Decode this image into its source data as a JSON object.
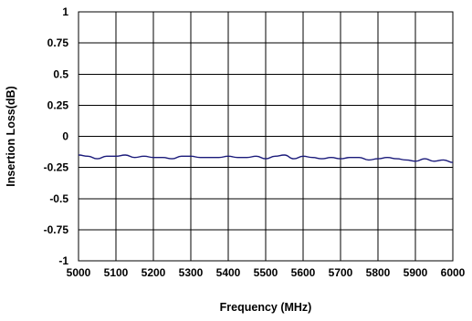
{
  "chart_data": {
    "type": "line",
    "xlabel": "Frequency (MHz)",
    "ylabel": "Insertion Loss(dB)",
    "xlim": [
      5000,
      6000
    ],
    "ylim": [
      -1,
      1
    ],
    "x_ticks": [
      5000,
      5100,
      5200,
      5300,
      5400,
      5500,
      5600,
      5700,
      5800,
      5900,
      6000
    ],
    "y_ticks": [
      1,
      0.75,
      0.5,
      0.25,
      0,
      -0.25,
      -0.5,
      -0.75,
      -1
    ],
    "x_tick_labels": [
      "5000",
      "5100",
      "5200",
      "5300",
      "5400",
      "5500",
      "5600",
      "5700",
      "5800",
      "5900",
      "6000"
    ],
    "y_tick_labels": [
      "1",
      "0.75",
      "0.5",
      "0.25",
      "0",
      "-0.25",
      "-0.5",
      "-0.75",
      "-1"
    ],
    "grid": true,
    "series": [
      {
        "color": "#1a1a7a",
        "x": [
          5000,
          5025,
          5050,
          5075,
          5100,
          5125,
          5150,
          5175,
          5200,
          5225,
          5250,
          5275,
          5300,
          5325,
          5350,
          5375,
          5400,
          5425,
          5450,
          5475,
          5500,
          5525,
          5550,
          5575,
          5600,
          5625,
          5650,
          5675,
          5700,
          5725,
          5750,
          5775,
          5800,
          5825,
          5850,
          5875,
          5900,
          5925,
          5950,
          5975,
          6000
        ],
        "y": [
          -0.15,
          -0.16,
          -0.18,
          -0.16,
          -0.16,
          -0.15,
          -0.17,
          -0.16,
          -0.17,
          -0.17,
          -0.18,
          -0.16,
          -0.16,
          -0.17,
          -0.17,
          -0.17,
          -0.16,
          -0.17,
          -0.17,
          -0.16,
          -0.18,
          -0.16,
          -0.15,
          -0.18,
          -0.16,
          -0.17,
          -0.18,
          -0.17,
          -0.18,
          -0.17,
          -0.17,
          -0.19,
          -0.18,
          -0.17,
          -0.18,
          -0.19,
          -0.2,
          -0.18,
          -0.2,
          -0.19,
          -0.21
        ]
      }
    ]
  }
}
